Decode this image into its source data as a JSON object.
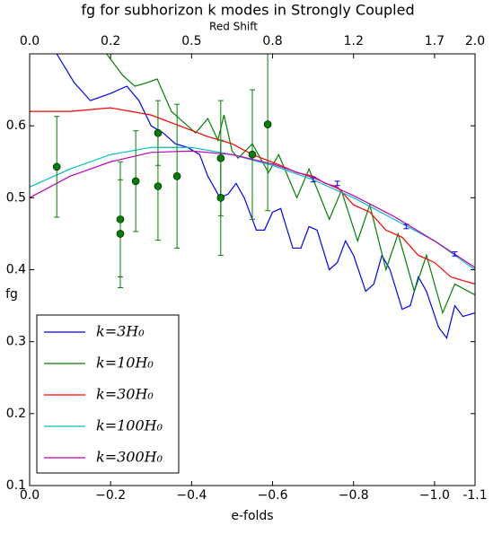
{
  "chart_data": {
    "type": "line",
    "title": "fg for subhorizon k modes in Strongly Coupled",
    "x_label": "e-folds",
    "y_label": "fg",
    "x2_label": "Red Shift",
    "xlim": [
      0,
      -1.1
    ],
    "ylim": [
      0.1,
      0.7
    ],
    "xticks": [
      {
        "value": 0,
        "label": "0.0"
      },
      {
        "value": -0.2,
        "label": "−0.2"
      },
      {
        "value": -0.4,
        "label": "−0.4"
      },
      {
        "value": -0.6,
        "label": "−0.6"
      },
      {
        "value": -0.8,
        "label": "−0.8"
      },
      {
        "value": -1.0,
        "label": "−1.0"
      },
      {
        "value": -1.1,
        "label": "-1.1"
      }
    ],
    "x2ticks": [
      {
        "value": 0,
        "label": "0.0"
      },
      {
        "value": -0.2,
        "label": "0.2"
      },
      {
        "value": -0.4,
        "label": "0.5"
      },
      {
        "value": -0.6,
        "label": "0.8"
      },
      {
        "value": -0.8,
        "label": "1.2"
      },
      {
        "value": -1.0,
        "label": "1.7"
      },
      {
        "value": -1.1,
        "label": "2.0"
      }
    ],
    "yticks": [
      0.1,
      0.2,
      0.3,
      0.4,
      0.5,
      0.6
    ],
    "legend": "lower left",
    "series": [
      {
        "name": "k=3H₀",
        "color": "#0000ff",
        "x": [
          -0.067,
          -0.11,
          -0.15,
          -0.2,
          -0.24,
          -0.27,
          -0.3,
          -0.33,
          -0.36,
          -0.39,
          -0.42,
          -0.44,
          -0.47,
          -0.49,
          -0.51,
          -0.53,
          -0.56,
          -0.58,
          -0.6,
          -0.62,
          -0.65,
          -0.67,
          -0.69,
          -0.71,
          -0.74,
          -0.76,
          -0.78,
          -0.8,
          -0.83,
          -0.85,
          -0.87,
          -0.89,
          -0.92,
          -0.94,
          -0.96,
          -0.98,
          -1.01,
          -1.03,
          -1.05,
          -1.07,
          -1.1
        ],
        "values": [
          0.7,
          0.66,
          0.635,
          0.645,
          0.655,
          0.635,
          0.6,
          0.59,
          0.575,
          0.57,
          0.56,
          0.53,
          0.5,
          0.505,
          0.52,
          0.5,
          0.455,
          0.455,
          0.48,
          0.485,
          0.43,
          0.43,
          0.46,
          0.455,
          0.4,
          0.41,
          0.44,
          0.42,
          0.37,
          0.38,
          0.42,
          0.4,
          0.345,
          0.35,
          0.39,
          0.37,
          0.32,
          0.305,
          0.35,
          0.335,
          0.34
        ]
      },
      {
        "name": "k=10H₀",
        "color": "#008000",
        "x": [
          -0.19,
          -0.23,
          -0.26,
          -0.29,
          -0.315,
          -0.35,
          -0.39,
          -0.41,
          -0.44,
          -0.465,
          -0.48,
          -0.5,
          -0.515,
          -0.55,
          -0.59,
          -0.615,
          -0.66,
          -0.69,
          -0.74,
          -0.77,
          -0.81,
          -0.84,
          -0.88,
          -0.91,
          -0.95,
          -0.98,
          -1.02,
          -1.05,
          -1.1
        ],
        "values": [
          0.7,
          0.67,
          0.655,
          0.66,
          0.665,
          0.62,
          0.6,
          0.59,
          0.61,
          0.58,
          0.615,
          0.565,
          0.555,
          0.575,
          0.535,
          0.56,
          0.5,
          0.54,
          0.47,
          0.51,
          0.44,
          0.49,
          0.4,
          0.45,
          0.37,
          0.42,
          0.34,
          0.38,
          0.365
        ]
      },
      {
        "name": "k=30H₀",
        "color": "#ff0000",
        "x": [
          0,
          -0.1,
          -0.2,
          -0.25,
          -0.3,
          -0.37,
          -0.44,
          -0.5,
          -0.55,
          -0.62,
          -0.66,
          -0.7,
          -0.73,
          -0.76,
          -0.8,
          -0.84,
          -0.88,
          -0.92,
          -0.96,
          -1.0,
          -1.04,
          -1.07,
          -1.1
        ],
        "values": [
          0.62,
          0.62,
          0.625,
          0.62,
          0.615,
          0.6,
          0.585,
          0.575,
          0.56,
          0.545,
          0.535,
          0.53,
          0.52,
          0.515,
          0.49,
          0.48,
          0.455,
          0.445,
          0.42,
          0.41,
          0.39,
          0.385,
          0.38
        ]
      },
      {
        "name": "k=100H₀",
        "color": "#00bfbf",
        "x": [
          0,
          -0.1,
          -0.2,
          -0.3,
          -0.4,
          -0.5,
          -0.6,
          -0.7,
          -0.8,
          -0.9,
          -1.0,
          -1.1
        ],
        "values": [
          0.515,
          0.54,
          0.56,
          0.57,
          0.57,
          0.56,
          0.545,
          0.525,
          0.5,
          0.47,
          0.44,
          0.4
        ]
      },
      {
        "name": "k=300H₀",
        "color": "#bf00bf",
        "x": [
          0,
          -0.1,
          -0.2,
          -0.3,
          -0.4,
          -0.5,
          -0.6,
          -0.7,
          -0.8,
          -0.9,
          -1.0,
          -1.1
        ],
        "values": [
          0.5,
          0.53,
          0.55,
          0.563,
          0.565,
          0.56,
          0.547,
          0.528,
          0.503,
          0.474,
          0.44,
          0.403
        ]
      }
    ],
    "errorbars": [
      {
        "color": "#008000",
        "marker": true,
        "x": [
          -0.067,
          -0.224,
          -0.224,
          -0.262,
          -0.317,
          -0.317,
          -0.364,
          -0.472,
          -0.472,
          -0.55,
          -0.588
        ],
        "values": [
          0.543,
          0.47,
          0.45,
          0.523,
          0.59,
          0.516,
          0.53,
          0.555,
          0.5,
          0.56,
          0.602
        ],
        "errors": [
          0.07,
          0.08,
          0.075,
          0.07,
          0.045,
          0.075,
          0.1,
          0.08,
          0.08,
          0.09,
          0.12
        ]
      },
      {
        "color": "#0000ff",
        "marker": false,
        "x": [
          -0.7,
          -0.76,
          -0.93,
          -1.05
        ],
        "values": [
          0.525,
          0.52,
          0.46,
          0.422
        ],
        "errors": [
          0.003,
          0.003,
          0.003,
          0.003
        ]
      }
    ]
  }
}
